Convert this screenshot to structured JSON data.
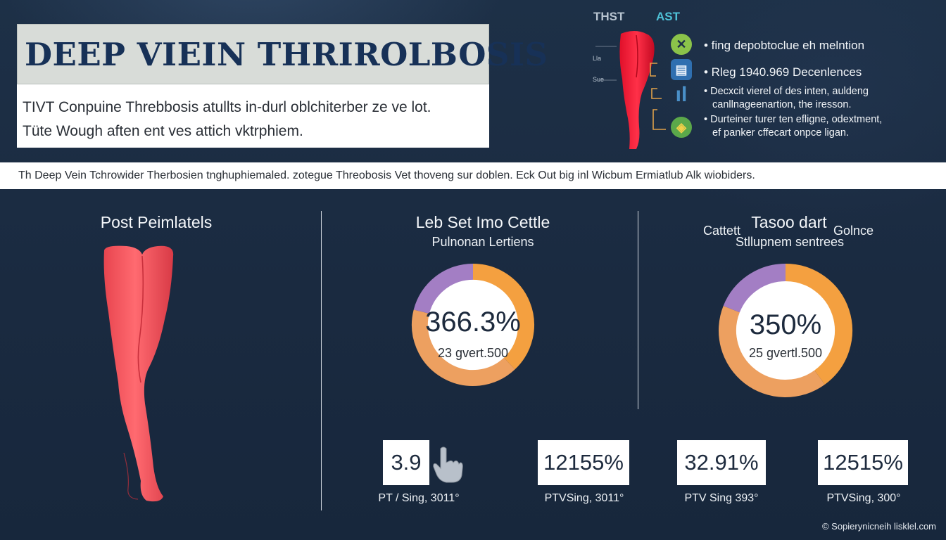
{
  "title": "DEEP VIEIN THRIROLBOSIS",
  "intro": {
    "line1": "TIVT Conpuine Threbbosis atullts in-durl oblchiterber ze ve lot.",
    "line2": "Tüte Wough aften ent ves attich vktrphiem."
  },
  "legend": {
    "label_left": "THST",
    "label_right": "AST",
    "tag_top": "Lla",
    "tag_bottom": "Sue",
    "icons": [
      "x-icon",
      "document-icon",
      "chart-icon",
      "medal-icon"
    ],
    "bullets": [
      "• fing depobtoclue eh melntion",
      "• Rleg 1940.969 Decenlences",
      "• Decxcit vierel of des inten, auldeng",
      "canllnageenartion, the iresson.",
      "• Durteiner turer ten efligne, odextment,",
      "ef panker cffecart onpce ligan."
    ],
    "colors": {
      "icon1": "#8bc34a",
      "icon2": "#2f6fb0",
      "icon3": "#4a90c8",
      "icon4": "#5ba84a"
    }
  },
  "banner": "Th Deep Vein Tchrowider Therbosien tnghuphiemaled. zotegue Threobosis Vet thoveng sur doblen. Eck Out big inl Wicbum Ermiatlub Alk wiobiders.",
  "panels": {
    "left": {
      "title": "Post Peimlatels"
    },
    "middle": {
      "title": "Leb Set Imo Cettle",
      "subtitle": "Pulnonan Lertiens",
      "value": "366.3%",
      "sub_value": "23 gvert.500"
    },
    "right": {
      "title": "Tasoo dart",
      "side_left": "Cattett",
      "side_right": "Golnce",
      "subtitle": "Stllupnem sentrees",
      "value": "350%",
      "sub_value": "25 gvertl.500"
    }
  },
  "chart_data": [
    {
      "type": "pie",
      "slices": [
        {
          "label": "orange-arc",
          "value": 38,
          "color": "#f4a040"
        },
        {
          "label": "light-orange-arc",
          "value": 41,
          "color": "#eda060"
        },
        {
          "label": "purple-arc",
          "value": 21,
          "color": "#a37ec4"
        }
      ]
    },
    {
      "type": "pie",
      "slices": [
        {
          "label": "orange-arc",
          "value": 40,
          "color": "#f4a040"
        },
        {
          "label": "light-orange-arc",
          "value": 41,
          "color": "#eda060"
        },
        {
          "label": "purple-arc",
          "value": 19,
          "color": "#a37ec4"
        }
      ]
    }
  ],
  "stats": [
    {
      "value": "3.9",
      "caption": "PT / Sing, 3011°"
    },
    {
      "value": "12155%",
      "caption": "PTVSing, 3011°"
    },
    {
      "value": "32.91%",
      "caption": "PTV Sing 393°"
    },
    {
      "value": "12515%",
      "caption": "PTVSing, 300°"
    }
  ],
  "footer": "© Sopierynicneih lisklel.com"
}
